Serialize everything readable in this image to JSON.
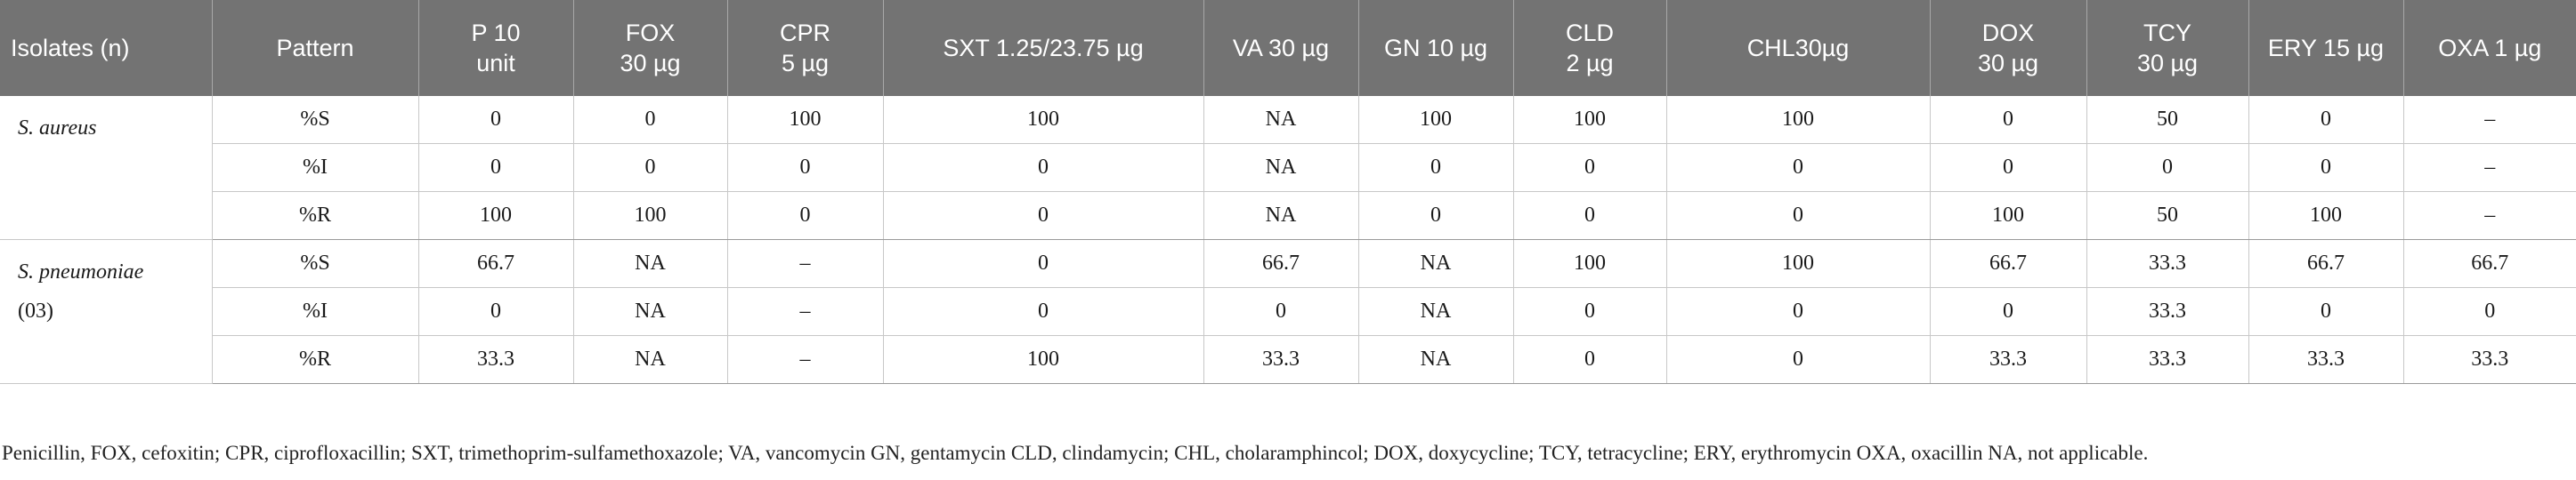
{
  "headers": [
    [
      "Isolates (n)"
    ],
    [
      "Pattern"
    ],
    [
      "P 10",
      "unit"
    ],
    [
      "FOX",
      "30 µg"
    ],
    [
      "CPR",
      "5 µg"
    ],
    [
      "SXT 1.25/23.75 µg"
    ],
    [
      "VA 30 µg"
    ],
    [
      "GN 10 µg"
    ],
    [
      "CLD",
      "2 µg"
    ],
    [
      "CHL30µg"
    ],
    [
      "DOX",
      "30 µg"
    ],
    [
      "TCY",
      "30 µg"
    ],
    [
      "ERY 15 µg"
    ],
    [
      "OXA 1 µg"
    ]
  ],
  "groups": [
    {
      "isolate": "S. aureus",
      "count": "",
      "rows": [
        {
          "pattern": "%S",
          "values": [
            "0",
            "0",
            "100",
            "100",
            "NA",
            "100",
            "100",
            "100",
            "0",
            "50",
            "0",
            "–"
          ]
        },
        {
          "pattern": "%I",
          "values": [
            "0",
            "0",
            "0",
            "0",
            "NA",
            "0",
            "0",
            "0",
            "0",
            "0",
            "0",
            "–"
          ]
        },
        {
          "pattern": "%R",
          "values": [
            "100",
            "100",
            "0",
            "0",
            "NA",
            "0",
            "0",
            "0",
            "100",
            "50",
            "100",
            "–"
          ]
        }
      ]
    },
    {
      "isolate": "S. pneumoniae",
      "count": "(03)",
      "rows": [
        {
          "pattern": "%S",
          "values": [
            "66.7",
            "NA",
            "–",
            "0",
            "66.7",
            "NA",
            "100",
            "100",
            "66.7",
            "33.3",
            "66.7",
            "66.7"
          ]
        },
        {
          "pattern": "%I",
          "values": [
            "0",
            "NA",
            "–",
            "0",
            "0",
            "NA",
            "0",
            "0",
            "0",
            "33.3",
            "0",
            "0"
          ]
        },
        {
          "pattern": "%R",
          "values": [
            "33.3",
            "NA",
            "–",
            "100",
            "33.3",
            "NA",
            "0",
            "0",
            "33.3",
            "33.3",
            "33.3",
            "33.3"
          ]
        }
      ]
    }
  ],
  "footnote": "Penicillin, FOX, cefoxitin; CPR, ciprofloxacillin; SXT, trimethoprim-sulfamethoxazole; VA, vancomycin GN, gentamycin CLD, clindamycin; CHL, cholaramphincol; DOX, doxycycline; TCY, tetracycline; ERY, erythromycin OXA, oxacillin NA, not applicable."
}
